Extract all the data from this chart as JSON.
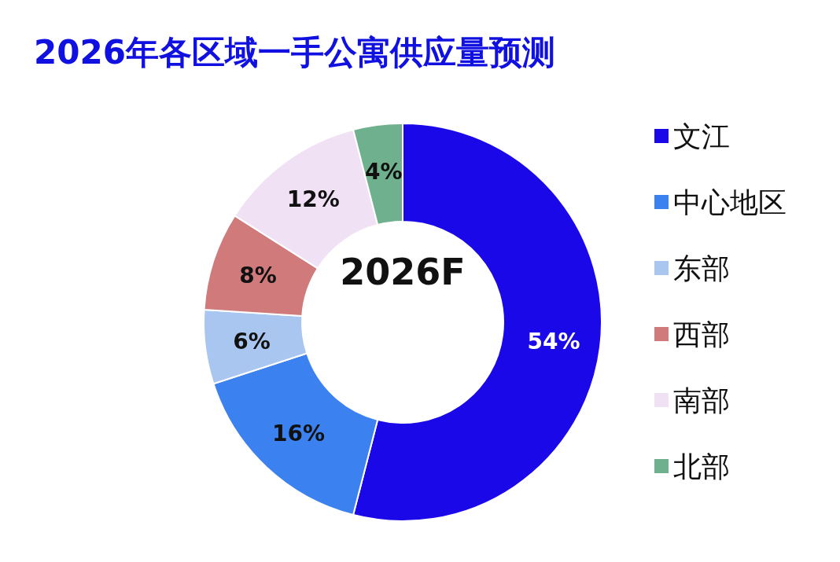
{
  "chart_data": {
    "type": "donut",
    "title": "2026年各区域一手公寓供应量预测",
    "categories": [
      "文江",
      "中心地区",
      "东部",
      "西部",
      "南部",
      "北部"
    ],
    "values": [
      54,
      16,
      6,
      8,
      12,
      4
    ],
    "colors": [
      "#1a08e8",
      "#3b82f0",
      "#a8c6f0",
      "#d07a7c",
      "#f1e1f5",
      "#6fb08e"
    ],
    "value_labels": [
      "54%",
      "16%",
      "6%",
      "8%",
      "12%",
      "4%"
    ],
    "annotations": [
      "2026F"
    ],
    "legend": "right"
  }
}
